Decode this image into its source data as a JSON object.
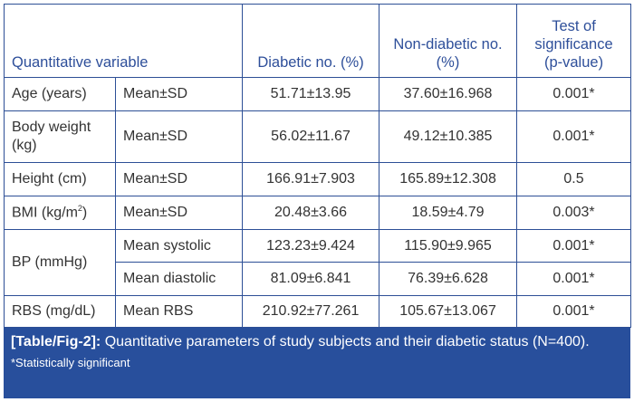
{
  "headers": {
    "variable": "Quantitative variable",
    "diabetic": "Diabetic no. (%)",
    "non_diabetic": "Non-diabetic no. (%)",
    "test": "Test of significance (p-value)"
  },
  "rows": [
    {
      "variable": "Age (years)",
      "stat": "Mean±SD",
      "diabetic": "51.71±13.95",
      "non_diabetic": "37.60±16.968",
      "p": "0.001*"
    },
    {
      "variable": "Body weight (kg)",
      "stat": "Mean±SD",
      "diabetic": "56.02±11.67",
      "non_diabetic": "49.12±10.385",
      "p": "0.001*"
    },
    {
      "variable": "Height (cm)",
      "stat": "Mean±SD",
      "diabetic": "166.91±7.903",
      "non_diabetic": "165.89±12.308",
      "p": "0.5"
    },
    {
      "variable": "BMI (kg/m",
      "sup": "2",
      "variable_end": ")",
      "stat": "Mean±SD",
      "diabetic": "20.48±3.66",
      "non_diabetic": "18.59±4.79",
      "p": "0.003*"
    },
    {
      "variable": "BP (mmHg)",
      "stat": "Mean systolic",
      "diabetic": "123.23±9.424",
      "non_diabetic": "115.90±9.965",
      "p": "0.001*"
    },
    {
      "stat": "Mean diastolic",
      "diabetic": "81.09±6.841",
      "non_diabetic": "76.39±6.628",
      "p": "0.001*"
    },
    {
      "variable": "RBS (mg/dL)",
      "stat": "Mean RBS",
      "diabetic": "210.92±77.261",
      "non_diabetic": "105.67±13.067",
      "p": "0.001*"
    }
  ],
  "caption": {
    "label": "[Table/Fig-2]:",
    "text": " Quantitative parameters of study subjects and their diabetic status (N=400).",
    "note": "*Statistically significant"
  }
}
